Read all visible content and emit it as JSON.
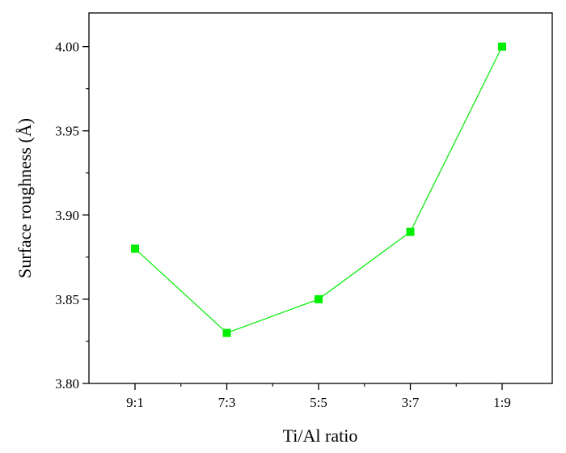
{
  "chart_data": {
    "type": "line",
    "title": "",
    "xlabel": "Ti/Al ratio",
    "ylabel": "Surface roughness (Å)",
    "categories": [
      "9:1",
      "7:3",
      "5:5",
      "3:7",
      "1:9"
    ],
    "series": [
      {
        "values": [
          3.88,
          3.83,
          3.85,
          3.89,
          4.0
        ],
        "color": "#00ee00",
        "marker": "square"
      }
    ],
    "ylim": [
      3.8,
      4.02
    ],
    "yticks": [
      3.8,
      3.85,
      3.9,
      3.95,
      4.0
    ],
    "ytick_labels": [
      "3.80",
      "3.85",
      "3.90",
      "3.95",
      "4.00"
    ],
    "grid": false,
    "legend": "none"
  }
}
